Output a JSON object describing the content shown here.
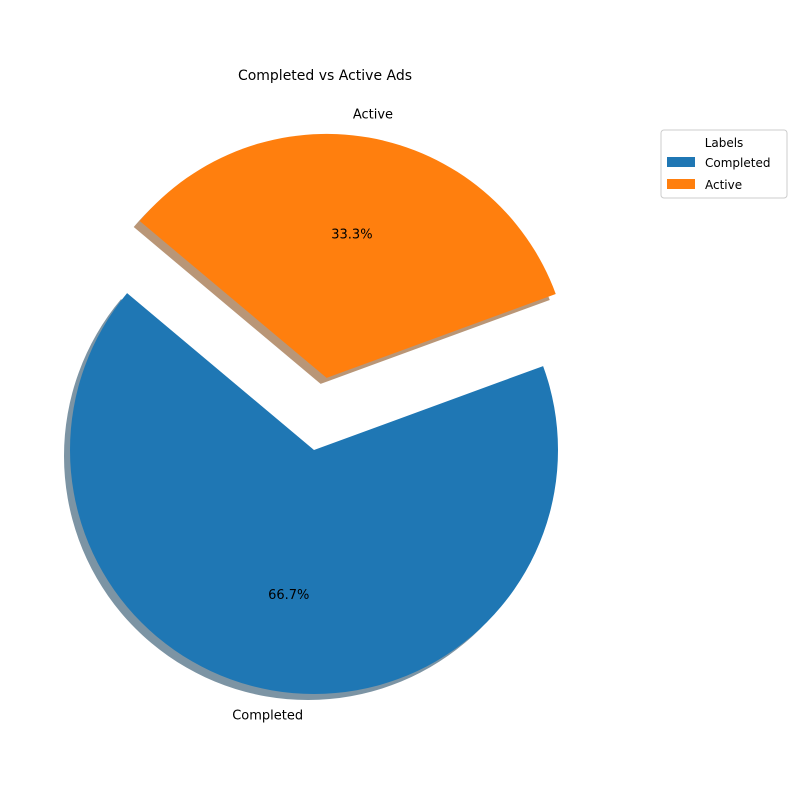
{
  "chart_data": {
    "type": "pie",
    "title": "Completed vs Active Ads",
    "slices": [
      {
        "label": "Completed",
        "value": 66.7,
        "pct_label": "66.7%",
        "color": "#1f77b4",
        "exploded": false
      },
      {
        "label": "Active",
        "value": 33.3,
        "pct_label": "33.3%",
        "color": "#ff7f0e",
        "exploded": true
      }
    ],
    "shadow": true,
    "legend": {
      "title": "Labels",
      "placement": "upper-right, outside plot",
      "entries": [
        "Completed",
        "Active"
      ]
    }
  }
}
